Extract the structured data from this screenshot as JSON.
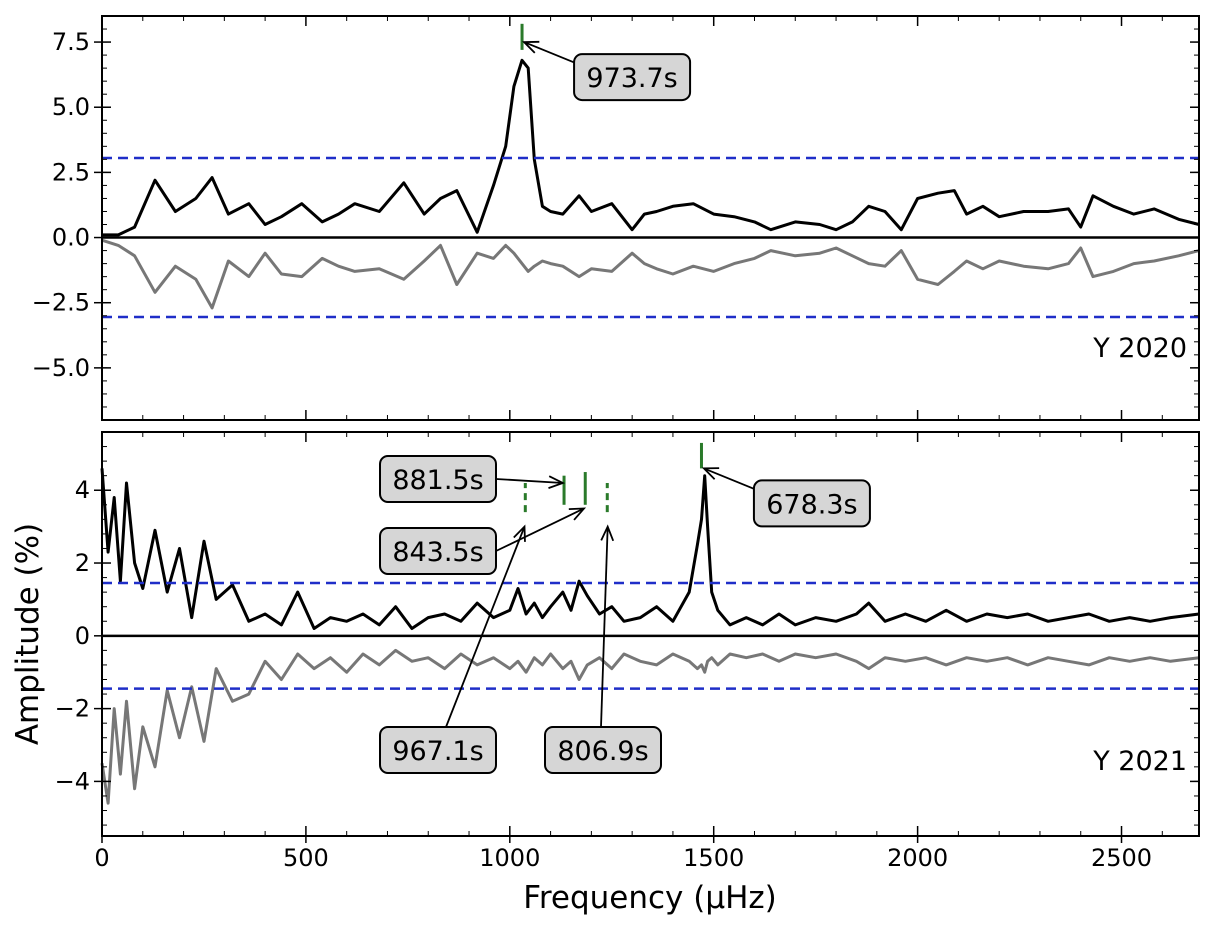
{
  "chart_data": {
    "type": "line",
    "xlabel": "Frequency (μHz)",
    "ylabel": "Amplitude (%)",
    "xlim": [
      0,
      2690
    ],
    "xticks": [
      0,
      500,
      1000,
      1500,
      2000,
      2500
    ],
    "xtick_labels": [
      "0",
      "500",
      "1000",
      "1500",
      "2000",
      "2500"
    ],
    "panels": [
      {
        "label": "Y 2020",
        "ylim": [
          -7.0,
          8.5
        ],
        "yticks": [
          -5.0,
          -2.5,
          0.0,
          2.5,
          5.0,
          7.5
        ],
        "ytick_labels": [
          "−5.0",
          "−2.5",
          "0.0",
          "2.5",
          "5.0",
          "7.5"
        ],
        "threshold": 3.05,
        "series": [
          {
            "name": "amplitude spectrum",
            "color": "#000000",
            "x": [
              0,
              40,
              80,
              130,
              180,
              230,
              270,
              310,
              360,
              400,
              440,
              490,
              540,
              580,
              620,
              680,
              740,
              790,
              830,
              870,
              920,
              960,
              990,
              1010,
              1030,
              1045,
              1060,
              1080,
              1100,
              1130,
              1170,
              1200,
              1250,
              1300,
              1330,
              1360,
              1400,
              1450,
              1500,
              1550,
              1600,
              1640,
              1700,
              1760,
              1800,
              1840,
              1880,
              1920,
              1960,
              2000,
              2050,
              2090,
              2120,
              2160,
              2200,
              2260,
              2320,
              2370,
              2400,
              2430,
              2480,
              2530,
              2580,
              2640,
              2690
            ],
            "y": [
              0.1,
              0.1,
              0.4,
              2.2,
              1.0,
              1.5,
              2.3,
              0.9,
              1.3,
              0.5,
              0.8,
              1.3,
              0.6,
              0.9,
              1.3,
              1.0,
              2.1,
              0.9,
              1.5,
              1.8,
              0.2,
              2.0,
              3.5,
              5.8,
              6.8,
              6.5,
              3.0,
              1.2,
              1.0,
              0.9,
              1.6,
              1.0,
              1.3,
              0.3,
              0.9,
              1.0,
              1.2,
              1.3,
              0.9,
              0.8,
              0.6,
              0.3,
              0.6,
              0.5,
              0.3,
              0.6,
              1.2,
              1.0,
              0.3,
              1.5,
              1.7,
              1.8,
              0.9,
              1.2,
              0.8,
              1.0,
              1.0,
              1.1,
              0.4,
              1.6,
              1.2,
              0.9,
              1.1,
              0.7,
              0.5
            ]
          },
          {
            "name": "mirrored spectrum",
            "color": "#777777",
            "x": [
              0,
              40,
              80,
              130,
              180,
              230,
              270,
              310,
              360,
              400,
              440,
              490,
              540,
              580,
              620,
              680,
              740,
              790,
              830,
              870,
              920,
              960,
              990,
              1010,
              1030,
              1045,
              1060,
              1080,
              1100,
              1130,
              1170,
              1200,
              1250,
              1300,
              1330,
              1360,
              1400,
              1450,
              1500,
              1550,
              1600,
              1640,
              1700,
              1760,
              1800,
              1840,
              1880,
              1920,
              1960,
              2000,
              2050,
              2090,
              2120,
              2160,
              2200,
              2260,
              2320,
              2370,
              2400,
              2430,
              2480,
              2530,
              2580,
              2640,
              2690
            ],
            "y": [
              -0.1,
              -0.3,
              -0.7,
              -2.1,
              -1.1,
              -1.6,
              -2.7,
              -0.9,
              -1.5,
              -0.6,
              -1.4,
              -1.5,
              -0.8,
              -1.1,
              -1.3,
              -1.2,
              -1.6,
              -0.9,
              -0.3,
              -1.8,
              -0.6,
              -0.8,
              -0.3,
              -0.6,
              -1.0,
              -1.3,
              -1.1,
              -0.9,
              -1.0,
              -1.1,
              -1.5,
              -1.2,
              -1.3,
              -0.6,
              -1.0,
              -1.2,
              -1.4,
              -1.1,
              -1.3,
              -1.0,
              -0.8,
              -0.5,
              -0.7,
              -0.6,
              -0.4,
              -0.7,
              -1.0,
              -1.1,
              -0.5,
              -1.6,
              -1.8,
              -1.3,
              -0.9,
              -1.2,
              -0.9,
              -1.1,
              -1.2,
              -1.0,
              -0.4,
              -1.5,
              -1.3,
              -1.0,
              -0.9,
              -0.7,
              -0.5
            ]
          }
        ],
        "markers": [
          {
            "x": 1030,
            "y0": 7.2,
            "y1": 8.2,
            "style": "solid"
          }
        ],
        "annotations": [
          {
            "text": "973.7s",
            "point": [
              1035,
              7.5
            ],
            "box": "right"
          }
        ]
      },
      {
        "label": "Y 2021",
        "ylim": [
          -5.5,
          5.6
        ],
        "yticks": [
          -4,
          -2,
          0,
          2,
          4
        ],
        "ytick_labels": [
          "−4",
          "−2",
          "0",
          "2",
          "4"
        ],
        "threshold": 1.45,
        "series": [
          {
            "name": "amplitude spectrum",
            "color": "#000000",
            "x": [
              0,
              15,
              30,
              45,
              60,
              80,
              100,
              130,
              160,
              190,
              220,
              250,
              280,
              320,
              360,
              400,
              440,
              480,
              520,
              560,
              600,
              640,
              680,
              720,
              760,
              800,
              840,
              880,
              920,
              960,
              1000,
              1020,
              1040,
              1060,
              1080,
              1100,
              1130,
              1150,
              1170,
              1190,
              1220,
              1250,
              1280,
              1320,
              1360,
              1400,
              1440,
              1460,
              1470,
              1478,
              1485,
              1495,
              1510,
              1540,
              1580,
              1620,
              1660,
              1700,
              1750,
              1800,
              1850,
              1880,
              1920,
              1970,
              2020,
              2070,
              2120,
              2170,
              2220,
              2270,
              2320,
              2370,
              2420,
              2470,
              2520,
              2570,
              2620,
              2690
            ],
            "y": [
              4.6,
              2.3,
              3.8,
              1.5,
              4.2,
              2.0,
              1.3,
              2.9,
              1.2,
              2.4,
              0.5,
              2.6,
              1.0,
              1.4,
              0.4,
              0.6,
              0.3,
              1.2,
              0.2,
              0.5,
              0.4,
              0.6,
              0.3,
              0.8,
              0.2,
              0.5,
              0.6,
              0.4,
              0.9,
              0.5,
              0.7,
              1.3,
              0.6,
              0.9,
              0.5,
              0.8,
              1.2,
              0.7,
              1.5,
              1.1,
              0.6,
              0.8,
              0.4,
              0.5,
              0.8,
              0.4,
              1.2,
              2.5,
              3.2,
              4.4,
              3.0,
              1.2,
              0.7,
              0.3,
              0.5,
              0.3,
              0.6,
              0.3,
              0.5,
              0.4,
              0.6,
              0.9,
              0.4,
              0.6,
              0.4,
              0.7,
              0.4,
              0.6,
              0.5,
              0.6,
              0.4,
              0.5,
              0.6,
              0.4,
              0.5,
              0.4,
              0.5,
              0.6
            ]
          },
          {
            "name": "mirrored spectrum",
            "color": "#777777",
            "x": [
              0,
              15,
              30,
              45,
              60,
              80,
              100,
              130,
              160,
              190,
              220,
              250,
              280,
              320,
              360,
              400,
              440,
              480,
              520,
              560,
              600,
              640,
              680,
              720,
              760,
              800,
              840,
              880,
              920,
              960,
              1000,
              1020,
              1040,
              1060,
              1080,
              1100,
              1130,
              1150,
              1170,
              1190,
              1220,
              1250,
              1280,
              1320,
              1360,
              1400,
              1440,
              1460,
              1470,
              1478,
              1485,
              1495,
              1510,
              1540,
              1580,
              1620,
              1660,
              1700,
              1750,
              1800,
              1850,
              1880,
              1920,
              1970,
              2020,
              2070,
              2120,
              2170,
              2220,
              2270,
              2320,
              2370,
              2420,
              2470,
              2520,
              2570,
              2620,
              2690
            ],
            "y": [
              -3.5,
              -4.6,
              -2.0,
              -3.8,
              -1.8,
              -4.2,
              -2.5,
              -3.6,
              -1.5,
              -2.8,
              -1.4,
              -2.9,
              -0.9,
              -1.8,
              -1.6,
              -0.7,
              -1.2,
              -0.5,
              -0.9,
              -0.6,
              -1.0,
              -0.5,
              -0.8,
              -0.4,
              -0.7,
              -0.6,
              -0.9,
              -0.5,
              -0.8,
              -0.6,
              -0.9,
              -0.7,
              -1.0,
              -0.6,
              -0.8,
              -0.5,
              -0.9,
              -0.7,
              -1.2,
              -0.8,
              -0.6,
              -0.9,
              -0.5,
              -0.7,
              -0.8,
              -0.5,
              -0.7,
              -0.9,
              -0.8,
              -1.0,
              -0.7,
              -0.6,
              -0.8,
              -0.5,
              -0.6,
              -0.5,
              -0.7,
              -0.5,
              -0.6,
              -0.5,
              -0.7,
              -0.9,
              -0.6,
              -0.7,
              -0.6,
              -0.8,
              -0.6,
              -0.7,
              -0.6,
              -0.8,
              -0.6,
              -0.7,
              -0.8,
              -0.6,
              -0.7,
              -0.6,
              -0.7,
              -0.6
            ]
          }
        ],
        "markers": [
          {
            "x": 1470,
            "y0": 4.6,
            "y1": 5.3,
            "style": "solid"
          },
          {
            "x": 1133,
            "y0": 3.6,
            "y1": 4.4,
            "style": "solid"
          },
          {
            "x": 1185,
            "y0": 3.6,
            "y1": 4.5,
            "style": "solid"
          },
          {
            "x": 1038,
            "y0": 3.4,
            "y1": 4.2,
            "style": "dashed"
          },
          {
            "x": 1239,
            "y0": 3.4,
            "y1": 4.2,
            "style": "dashed"
          }
        ],
        "annotations": [
          {
            "text": "678.3s",
            "point": [
              1476,
              4.6
            ],
            "box": "right"
          },
          {
            "text": "881.5s",
            "point": [
              1130,
              4.2
            ],
            "box": "left"
          },
          {
            "text": "843.5s",
            "point": [
              1182,
              3.5
            ],
            "box": "left"
          },
          {
            "text": "967.1s",
            "point": [
              1036,
              3.0
            ],
            "box": "below"
          },
          {
            "text": "806.9s",
            "point": [
              1240,
              3.0
            ],
            "box": "below"
          }
        ]
      }
    ]
  }
}
